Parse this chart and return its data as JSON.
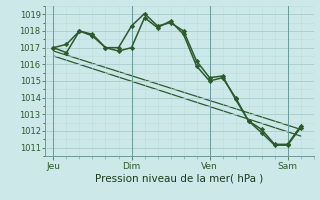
{
  "background_color": "#cce8e8",
  "grid_major_color": "#aacccc",
  "grid_minor_color": "#bbdddd",
  "line_color": "#2d5a2d",
  "marker_color": "#2d5a2d",
  "xlabel": "Pression niveau de la mer( hPa )",
  "ylim": [
    1010.5,
    1019.5
  ],
  "yticks": [
    1011,
    1012,
    1013,
    1014,
    1015,
    1016,
    1017,
    1018,
    1019
  ],
  "xtick_labels": [
    "Jeu",
    "Dim",
    "Ven",
    "Sam"
  ],
  "xtick_positions": [
    0,
    36,
    72,
    108
  ],
  "xlim": [
    -4,
    120
  ],
  "num_x_points": 120,
  "line1_x": [
    0,
    6,
    12,
    18,
    24,
    30,
    36,
    42,
    48,
    54,
    60,
    66,
    72,
    78,
    84,
    90,
    96,
    102,
    108,
    114
  ],
  "line1_y": [
    1017.0,
    1017.2,
    1018.0,
    1017.8,
    1017.0,
    1017.0,
    1018.3,
    1019.05,
    1018.3,
    1018.5,
    1018.0,
    1016.2,
    1015.2,
    1015.3,
    1013.9,
    1012.6,
    1012.1,
    1011.2,
    1011.2,
    1012.3
  ],
  "line2_x": [
    0,
    6,
    12,
    18,
    24,
    30,
    36,
    42,
    48,
    54,
    60,
    66,
    72,
    78,
    84,
    90,
    96,
    102,
    108,
    114
  ],
  "line2_y": [
    1017.0,
    1016.7,
    1018.0,
    1017.7,
    1017.0,
    1016.8,
    1017.0,
    1018.8,
    1018.2,
    1018.6,
    1017.8,
    1015.9,
    1015.0,
    1015.2,
    1014.0,
    1012.6,
    1011.9,
    1011.15,
    1011.15,
    1012.2
  ],
  "trend1_x": [
    0,
    114
  ],
  "trend1_y": [
    1016.8,
    1012.1
  ],
  "trend2_x": [
    0,
    114
  ],
  "trend2_y": [
    1016.5,
    1011.7
  ],
  "vline_positions": [
    0,
    36,
    72,
    108
  ]
}
